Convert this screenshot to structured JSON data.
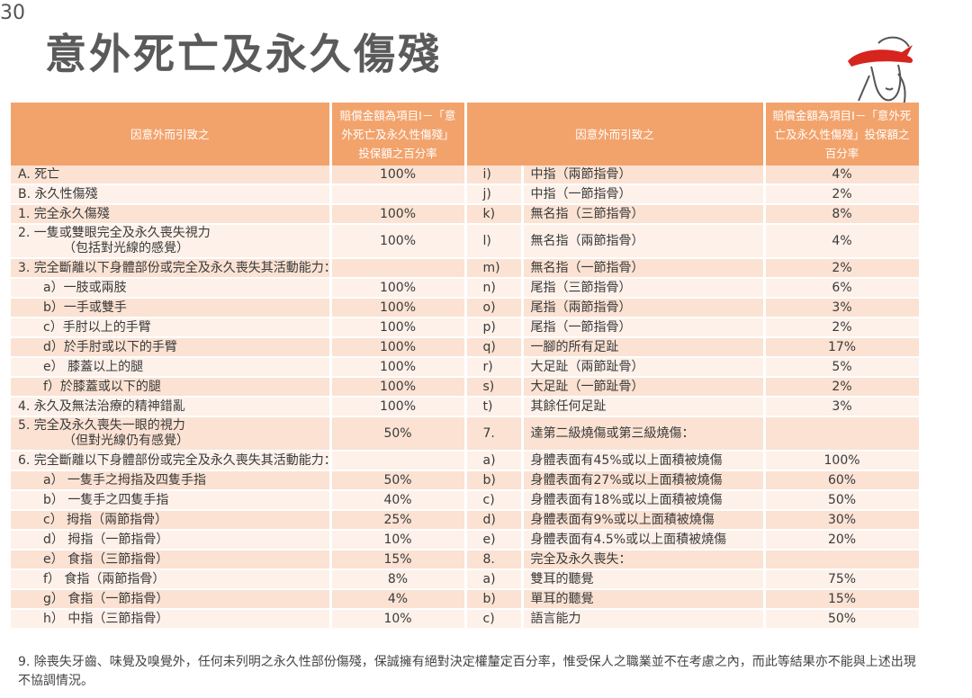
{
  "page_number": "30",
  "title": "意外死亡及永久傷殘",
  "header": {
    "cause": "因意外而引致之",
    "benefit": "賠償金額為項目I－「意外死亡及永久性傷殘」投保額之百分率"
  },
  "rows": [
    {
      "l_desc": [
        "A. 死亡"
      ],
      "l_pct": "100%",
      "r_label": "i)",
      "r_desc": "中指（兩節指骨）",
      "r_pct": "4%"
    },
    {
      "l_desc": [
        "B. 永久性傷殘"
      ],
      "l_pct": "",
      "r_label": "j)",
      "r_desc": "中指（一節指骨）",
      "r_pct": "2%"
    },
    {
      "l_desc": [
        "1.  完全永久傷殘"
      ],
      "l_pct": "100%",
      "r_label": "k)",
      "r_desc": "無名指（三節指骨）",
      "r_pct": "8%"
    },
    {
      "l_desc": [
        "2.  一隻或雙眼完全及永久喪失視力",
        "（包括對光線的感覺）"
      ],
      "l_pct": "100%",
      "r_label": "l)",
      "r_desc": "無名指（兩節指骨）",
      "r_pct": "4%"
    },
    {
      "l_desc": [
        "3.  完全斷離以下身體部份或完全及永久喪失其活動能力："
      ],
      "l_pct": "",
      "r_label": "m)",
      "r_desc": "無名指（一節指骨）",
      "r_pct": "2%"
    },
    {
      "l_desc": [
        "a）一肢或兩肢"
      ],
      "l_pct": "100%",
      "r_label": "n)",
      "r_desc": "尾指（三節指骨）",
      "r_pct": "6%"
    },
    {
      "l_desc": [
        "b）一手或雙手"
      ],
      "l_pct": "100%",
      "r_label": "o)",
      "r_desc": "尾指（兩節指骨）",
      "r_pct": "3%"
    },
    {
      "l_desc": [
        "c）手肘以上的手臂"
      ],
      "l_pct": "100%",
      "r_label": "p)",
      "r_desc": "尾指（一節指骨）",
      "r_pct": "2%"
    },
    {
      "l_desc": [
        "d）於手肘或以下的手臂"
      ],
      "l_pct": "100%",
      "r_label": "q)",
      "r_desc": "一腳的所有足趾",
      "r_pct": "17%"
    },
    {
      "l_desc": [
        "e）  膝蓋以上的腿"
      ],
      "l_pct": "100%",
      "r_label": "r)",
      "r_desc": "大足趾（兩節趾骨）",
      "r_pct": "5%"
    },
    {
      "l_desc": [
        "f）於膝蓋或以下的腿"
      ],
      "l_pct": "100%",
      "r_label": "s)",
      "r_desc": "大足趾（一節趾骨）",
      "r_pct": "2%"
    },
    {
      "l_desc": [
        "4.  永久及無法治療的精神錯亂"
      ],
      "l_pct": "100%",
      "r_label": "t)",
      "r_desc": "其餘任何足趾",
      "r_pct": "3%"
    },
    {
      "l_desc": [
        "5.  完全及永久喪失一眼的視力",
        "（但對光線仍有感覺）"
      ],
      "l_pct": "50%",
      "r_label": "7.",
      "r_desc": "達第二級燒傷或第三級燒傷：",
      "r_pct": ""
    },
    {
      "l_desc": [
        "6.  完全斷離以下身體部份或完全及永久喪失其活動能力："
      ],
      "l_pct": "",
      "r_label": "a)",
      "r_desc": "身體表面有45%或以上面積被燒傷",
      "r_pct": "100%"
    },
    {
      "l_desc": [
        "a）   一隻手之拇指及四隻手指"
      ],
      "l_pct": "50%",
      "r_label": "b)",
      "r_desc": "身體表面有27%或以上面積被燒傷",
      "r_pct": "60%"
    },
    {
      "l_desc": [
        "b）   一隻手之四隻手指"
      ],
      "l_pct": "40%",
      "r_label": "c)",
      "r_desc": "身體表面有18%或以上面積被燒傷",
      "r_pct": "50%"
    },
    {
      "l_desc": [
        "c）   拇指（兩節指骨）"
      ],
      "l_pct": "25%",
      "r_label": "d)",
      "r_desc": "身體表面有9%或以上面積被燒傷",
      "r_pct": "30%"
    },
    {
      "l_desc": [
        "d）   拇指（一節指骨）"
      ],
      "l_pct": "10%",
      "r_label": "e)",
      "r_desc": "身體表面有4.5%或以上面積被燒傷",
      "r_pct": "20%"
    },
    {
      "l_desc": [
        "e）   食指（三節指骨）"
      ],
      "l_pct": "15%",
      "r_label": "8.",
      "r_desc": "完全及永久喪失：",
      "r_pct": ""
    },
    {
      "l_desc": [
        "f）   食指（兩節指骨）"
      ],
      "l_pct": "8%",
      "r_label": "a)",
      "r_desc": "雙耳的聽覺",
      "r_pct": "75%"
    },
    {
      "l_desc": [
        "g）   食指（一節指骨）"
      ],
      "l_pct": "4%",
      "r_label": "b)",
      "r_desc": "單耳的聽覺",
      "r_pct": "15%"
    },
    {
      "l_desc": [
        "h）   中指（三節指骨）"
      ],
      "l_pct": "10%",
      "r_label": "c)",
      "r_desc": "語言能力",
      "r_pct": "50%"
    }
  ],
  "footnote": "9.  除喪失牙齒、味覺及嗅覺外，任何未列明之永久性部份傷殘，保誠擁有絕對決定權釐定百分率，惟受保人之職業並不在考慮之內，而此等結果亦不能與上述出現不協調情況。",
  "colors": {
    "header_bg": "#f2a36c",
    "row_odd": "#fbe2d3",
    "row_even": "#fdf1ea"
  }
}
